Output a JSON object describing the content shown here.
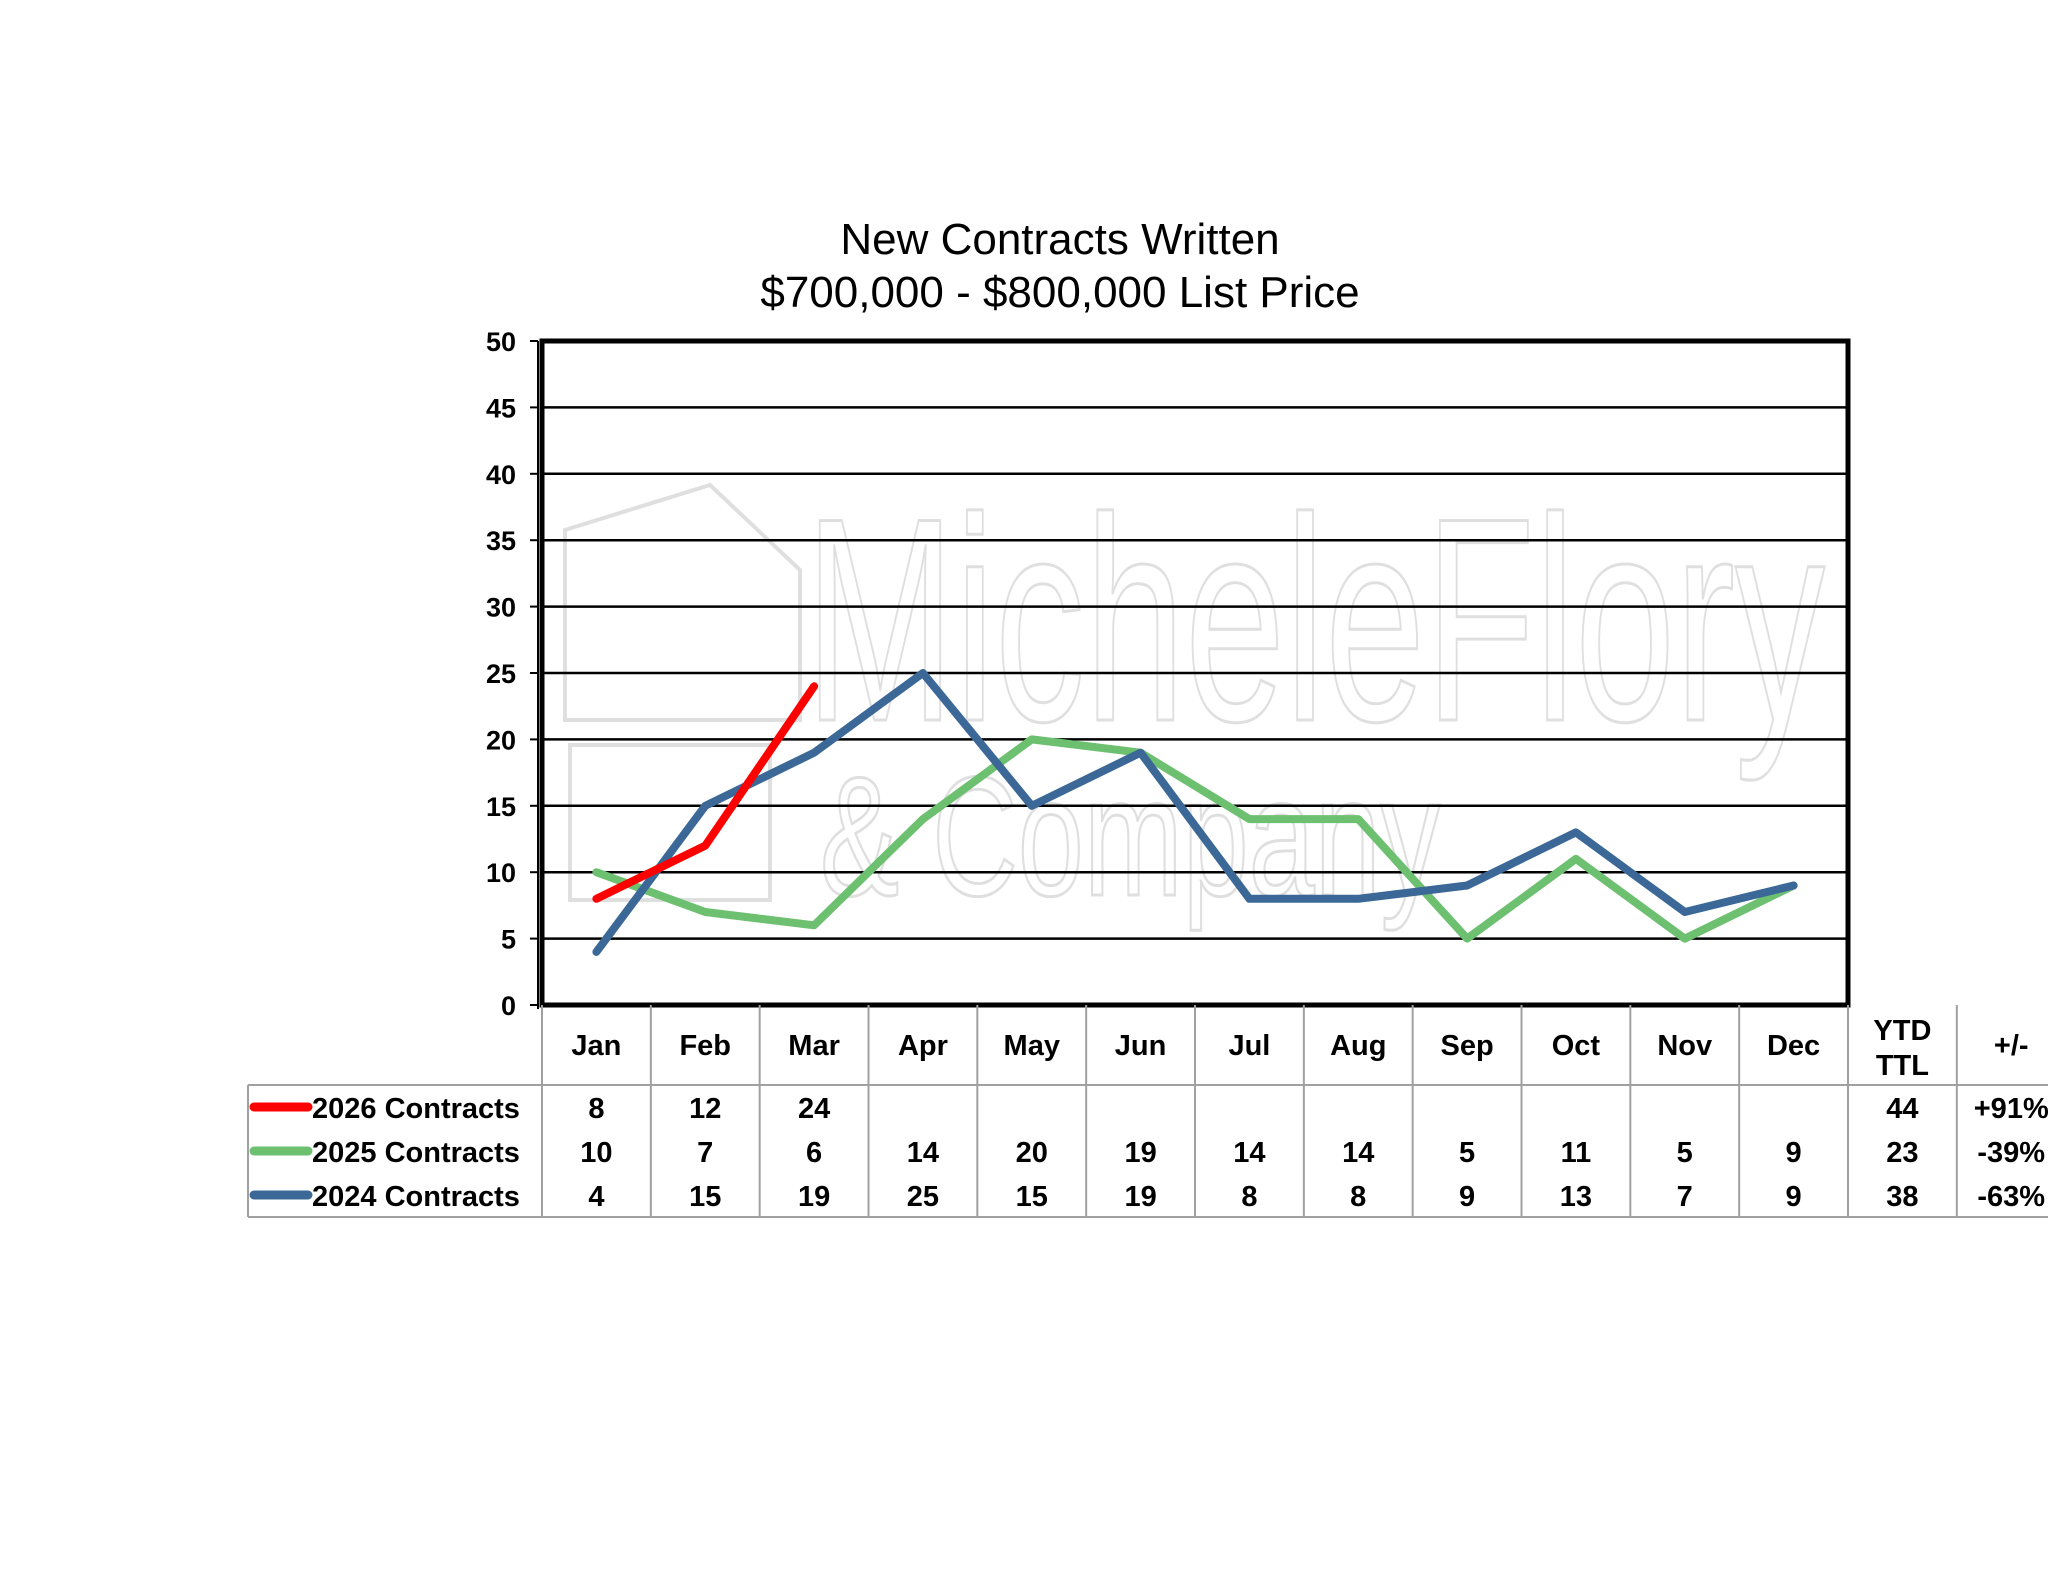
{
  "chart_data": {
    "type": "line",
    "title": "New Contracts Written",
    "subtitle": "$700,000 - $800,000 List Price",
    "categories": [
      "Jan",
      "Feb",
      "Mar",
      "Apr",
      "May",
      "Jun",
      "Jul",
      "Aug",
      "Sep",
      "Oct",
      "Nov",
      "Dec"
    ],
    "ylim": [
      0,
      50
    ],
    "yticks": [
      0,
      5,
      10,
      15,
      20,
      25,
      30,
      35,
      40,
      45,
      50
    ],
    "grid": true,
    "series": [
      {
        "name": "2026 Contracts",
        "color": "#ff0000",
        "values": [
          8,
          12,
          24,
          null,
          null,
          null,
          null,
          null,
          null,
          null,
          null,
          null
        ],
        "ytd": "44",
        "change": "+91%"
      },
      {
        "name": "2025 Contracts",
        "color": "#6cc070",
        "values": [
          10,
          7,
          6,
          14,
          20,
          19,
          14,
          14,
          5,
          11,
          5,
          9
        ],
        "ytd": "23",
        "change": "-39%"
      },
      {
        "name": "2024 Contracts",
        "color": "#3b6896",
        "values": [
          4,
          15,
          19,
          25,
          15,
          19,
          8,
          8,
          9,
          13,
          7,
          9
        ],
        "ytd": "38",
        "change": "-63%"
      }
    ],
    "table_headers": {
      "ytd_line1": "YTD",
      "ytd_line2": "TTL",
      "change": "+/-"
    }
  },
  "watermark": {
    "line1": "MicheleFlory",
    "line2": "& Company"
  }
}
